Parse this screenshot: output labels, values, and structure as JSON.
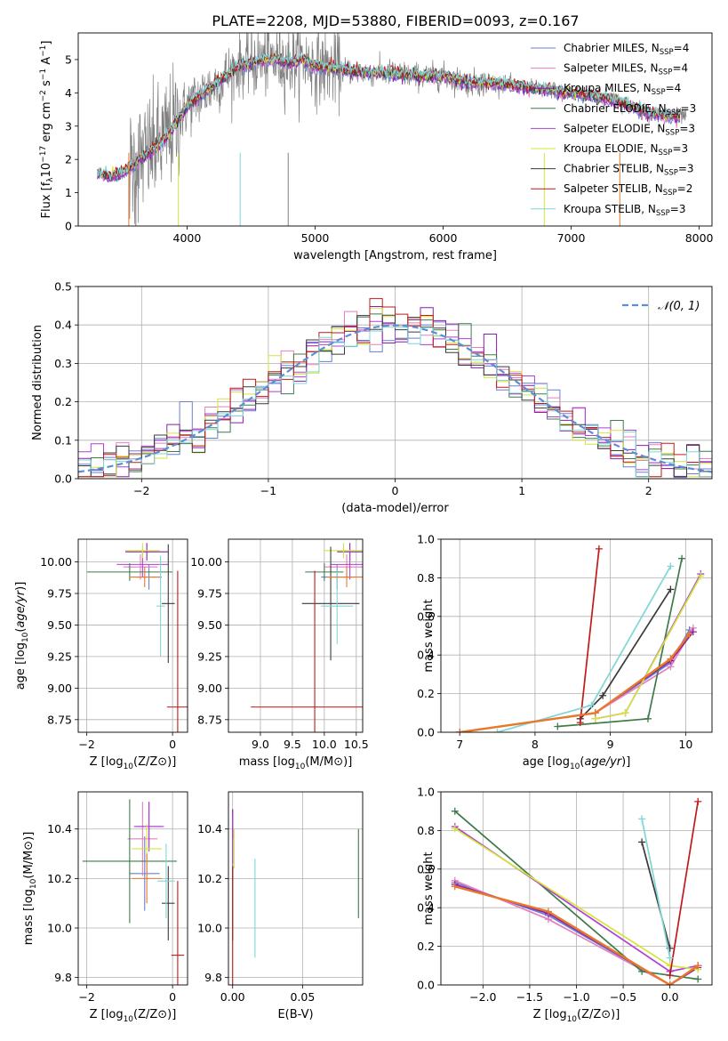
{
  "title": "PLATE=2208, MJD=53880, FIBERID=0093, z=0.167",
  "colors": {
    "Chabrier MILES": "#6a7fd6",
    "Salpeter MILES": "#e57fbf",
    "Kroupa MILES": "#8b1fa8",
    "Chabrier ELODIE": "#3f7a4a",
    "Salpeter ELODIE": "#b03fd6",
    "Kroupa ELODIE": "#d4e43a",
    "Chabrier STELIB": "#3a3a3a",
    "Salpeter STELIB": "#c01a1a",
    "Kroupa STELIB": "#7fd6d6",
    "data": "#808080",
    "orange": "#e8792a"
  },
  "legend_models": [
    {
      "label": "Chabrier MILES, N",
      "sub": "SSP",
      "n": "=4"
    },
    {
      "label": "Salpeter MILES, N",
      "sub": "SSP",
      "n": "=4"
    },
    {
      "label": "Kroupa MILES, N",
      "sub": "SSP",
      "n": "=4"
    },
    {
      "label": "Chabrier ELODIE, N",
      "sub": "SSP",
      "n": "=3"
    },
    {
      "label": "Salpeter ELODIE, N",
      "sub": "SSP",
      "n": "=3"
    },
    {
      "label": "Kroupa ELODIE, N",
      "sub": "SSP",
      "n": "=3"
    },
    {
      "label": "Chabrier STELIB, N",
      "sub": "SSP",
      "n": "=3"
    },
    {
      "label": "Salpeter STELIB, N",
      "sub": "SSP",
      "n": "=2"
    },
    {
      "label": "Kroupa STELIB, N",
      "sub": "SSP",
      "n": "=3"
    }
  ],
  "chart_data": [
    {
      "id": "spectrum",
      "type": "line",
      "xlabel": "wavelength [Angstrom, rest frame]",
      "ylabel": "Flux [fλ10⁻¹⁷ erg cm⁻² s⁻¹ A⁻¹]",
      "xlim": [
        3150,
        8100
      ],
      "ylim": [
        0,
        5.8
      ],
      "xticks": [
        4000,
        5000,
        6000,
        7000,
        8000
      ],
      "yticks": [
        0,
        1,
        2,
        3,
        4,
        5
      ],
      "model_continuum": {
        "x": [
          3300,
          3400,
          3500,
          3600,
          3700,
          3800,
          3900,
          4000,
          4100,
          4200,
          4300,
          4400,
          4500,
          4600,
          4700,
          4800,
          4900,
          5000,
          5200,
          5400,
          5600,
          5800,
          6000,
          6200,
          6400,
          6600,
          6800,
          7000,
          7200,
          7400,
          7600,
          7800
        ],
        "y": [
          1.6,
          1.5,
          1.6,
          1.9,
          2.2,
          2.5,
          3.0,
          3.6,
          3.9,
          4.2,
          4.5,
          4.8,
          4.9,
          5.0,
          5.0,
          4.9,
          5.0,
          4.8,
          4.7,
          4.6,
          4.6,
          4.5,
          4.5,
          4.3,
          4.3,
          4.2,
          4.1,
          4.0,
          3.9,
          3.7,
          3.4,
          3.3
        ]
      }
    },
    {
      "id": "residuals",
      "type": "histogram",
      "xlabel": "(data-model)/error",
      "ylabel": "Normed distribution",
      "xlim": [
        -2.5,
        2.5
      ],
      "ylim": [
        0,
        0.5
      ],
      "xticks": [
        -2,
        -1,
        0,
        1,
        2
      ],
      "yticks": [
        0.0,
        0.1,
        0.2,
        0.3,
        0.4,
        0.5
      ],
      "legend": "N(0,1)",
      "bin_width": 0.1
    },
    {
      "id": "age_vs_Z",
      "type": "scatter",
      "xlabel": "Z [log10(Z/Z⊙)]",
      "ylabel": "age  [log10(age/yr)]",
      "xlim": [
        -2.2,
        0.35
      ],
      "ylim": [
        8.65,
        10.18
      ],
      "xticks": [
        -2,
        0
      ],
      "yticks": [
        8.75,
        9.0,
        9.25,
        9.5,
        9.75,
        10.0
      ],
      "points": [
        {
          "m": "Chabrier MILES",
          "x": -0.55,
          "xe": 0.3,
          "y": 9.88,
          "ye": 0.1
        },
        {
          "m": "Salpeter MILES",
          "x": -0.75,
          "xe": 0.4,
          "y": 9.96,
          "ye": 0.1
        },
        {
          "m": "Kroupa MILES",
          "x": -0.6,
          "xe": 0.5,
          "y": 10.08,
          "ye": 0.07
        },
        {
          "m": "Chabrier ELODIE",
          "x": -1.0,
          "xe": 1.0,
          "y": 9.92,
          "ye": 0.07
        },
        {
          "m": "Salpeter ELODIE",
          "x": -0.7,
          "xe": 0.6,
          "y": 9.98,
          "ye": 0.1
        },
        {
          "m": "Kroupa ELODIE",
          "x": -0.7,
          "xe": 0.4,
          "y": 10.09,
          "ye": 0.06
        },
        {
          "m": "Chabrier STELIB",
          "x": -0.1,
          "xe": 0.15,
          "y": 9.67,
          "ye": 0.47
        },
        {
          "m": "Salpeter STELIB",
          "x": 0.12,
          "xe": 0.25,
          "y": 8.85,
          "ye": 1.08
        },
        {
          "m": "Kroupa STELIB",
          "x": -0.28,
          "xe": 0.1,
          "y": 9.65,
          "ye": 0.4
        },
        {
          "m": "orange",
          "x": -0.65,
          "xe": 0.35,
          "y": 9.88,
          "ye": 0.08
        }
      ]
    },
    {
      "id": "age_vs_mass",
      "type": "scatter",
      "xlabel": "mass [log10(M/M⊙)]",
      "xlim": [
        8.5,
        10.6
      ],
      "ylim": [
        8.65,
        10.18
      ],
      "xticks": [
        9.0,
        9.5,
        10.0,
        10.5
      ],
      "yticks": [
        8.75,
        9.0,
        9.25,
        9.5,
        9.75,
        10.0
      ],
      "points": [
        {
          "m": "Chabrier MILES",
          "x": 10.2,
          "xe": 0.25,
          "y": 9.88,
          "ye": 0.1
        },
        {
          "m": "Salpeter MILES",
          "x": 10.35,
          "xe": 0.35,
          "y": 9.96,
          "ye": 0.1
        },
        {
          "m": "Kroupa MILES",
          "x": 10.4,
          "xe": 0.2,
          "y": 10.08,
          "ye": 0.07
        },
        {
          "m": "Chabrier ELODIE",
          "x": 10.0,
          "xe": 0.3,
          "y": 9.92,
          "ye": 0.07
        },
        {
          "m": "Salpeter ELODIE",
          "x": 10.4,
          "xe": 0.3,
          "y": 9.98,
          "ye": 0.12
        },
        {
          "m": "Kroupa ELODIE",
          "x": 10.3,
          "xe": 0.3,
          "y": 10.09,
          "ye": 0.06
        },
        {
          "m": "Chabrier STELIB",
          "x": 10.1,
          "xe": 0.45,
          "y": 9.67,
          "ye": 0.45
        },
        {
          "m": "Salpeter STELIB",
          "x": 9.85,
          "xe": 1.0,
          "y": 8.85,
          "ye": 1.08
        },
        {
          "m": "Kroupa STELIB",
          "x": 10.2,
          "xe": 0.25,
          "y": 9.65,
          "ye": 0.3
        },
        {
          "m": "orange",
          "x": 10.35,
          "xe": 0.3,
          "y": 9.88,
          "ye": 0.08
        }
      ]
    },
    {
      "id": "mass_weight_vs_age",
      "type": "line",
      "xlabel": "age  [log10(age/yr)]",
      "ylabel": "mass weight",
      "xlim": [
        6.75,
        10.35
      ],
      "ylim": [
        0,
        1.0
      ],
      "xticks": [
        7,
        8,
        9,
        10
      ],
      "yticks": [
        0.0,
        0.2,
        0.4,
        0.6,
        0.8,
        1.0
      ],
      "series": [
        {
          "m": "Chabrier MILES",
          "x": [
            7.0,
            8.8,
            9.8,
            10.05
          ],
          "y": [
            0.0,
            0.1,
            0.36,
            0.53
          ]
        },
        {
          "m": "Salpeter MILES",
          "x": [
            7.0,
            8.8,
            9.8,
            10.1
          ],
          "y": [
            0.0,
            0.1,
            0.34,
            0.54
          ]
        },
        {
          "m": "Kroupa MILES",
          "x": [
            7.0,
            8.8,
            9.8,
            10.1
          ],
          "y": [
            0.0,
            0.1,
            0.37,
            0.52
          ]
        },
        {
          "m": "Chabrier ELODIE",
          "x": [
            8.3,
            9.5,
            9.95
          ],
          "y": [
            0.03,
            0.07,
            0.9
          ]
        },
        {
          "m": "Salpeter ELODIE",
          "x": [
            8.8,
            9.2,
            10.2
          ],
          "y": [
            0.07,
            0.1,
            0.82
          ]
        },
        {
          "m": "Kroupa ELODIE",
          "x": [
            8.8,
            9.2,
            10.2
          ],
          "y": [
            0.07,
            0.1,
            0.81
          ]
        },
        {
          "m": "Chabrier STELIB",
          "x": [
            8.6,
            8.9,
            9.8
          ],
          "y": [
            0.07,
            0.19,
            0.74
          ]
        },
        {
          "m": "Salpeter STELIB",
          "x": [
            8.6,
            8.85
          ],
          "y": [
            0.05,
            0.95
          ]
        },
        {
          "m": "Kroupa STELIB",
          "x": [
            7.5,
            8.75,
            9.8
          ],
          "y": [
            0.0,
            0.14,
            0.86
          ]
        },
        {
          "m": "orange",
          "x": [
            7.0,
            8.8,
            9.8,
            10.05
          ],
          "y": [
            0.0,
            0.1,
            0.38,
            0.51
          ]
        }
      ]
    },
    {
      "id": "mass_vs_Z",
      "type": "scatter",
      "xlabel": "Z [log10(Z/Z⊙)]",
      "ylabel": "mass [log10(M/M⊙)]",
      "xlim": [
        -2.2,
        0.35
      ],
      "ylim": [
        9.77,
        10.55
      ],
      "xticks": [
        -2,
        0
      ],
      "yticks": [
        9.8,
        10.0,
        10.2,
        10.4
      ],
      "points": [
        {
          "m": "Chabrier MILES",
          "x": -0.65,
          "xe": 0.35,
          "y": 10.22,
          "ye": 0.15
        },
        {
          "m": "Salpeter MILES",
          "x": -0.7,
          "xe": 0.35,
          "y": 10.36,
          "ye": 0.15
        },
        {
          "m": "Kroupa MILES",
          "x": -0.55,
          "xe": 0.3,
          "y": 10.41,
          "ye": 0.1
        },
        {
          "m": "Chabrier ELODIE",
          "x": -1.0,
          "xe": 1.1,
          "y": 10.27,
          "ye": 0.25
        },
        {
          "m": "Salpeter ELODIE",
          "x": -0.55,
          "xe": 0.35,
          "y": 10.41,
          "ye": 0.1
        },
        {
          "m": "Kroupa ELODIE",
          "x": -0.6,
          "xe": 0.35,
          "y": 10.32,
          "ye": 0.1
        },
        {
          "m": "Chabrier STELIB",
          "x": -0.1,
          "xe": 0.15,
          "y": 10.1,
          "ye": 0.15
        },
        {
          "m": "Salpeter STELIB",
          "x": 0.12,
          "xe": 0.15,
          "y": 9.89,
          "ye": 0.3
        },
        {
          "m": "Kroupa STELIB",
          "x": -0.15,
          "xe": 0.2,
          "y": 10.19,
          "ye": 0.15
        },
        {
          "m": "orange",
          "x": -0.6,
          "xe": 0.35,
          "y": 10.2,
          "ye": 0.1
        }
      ]
    },
    {
      "id": "mass_vs_ebv",
      "type": "scatter",
      "xlabel": "E(B-V)",
      "xlim": [
        -0.003,
        0.093
      ],
      "ylim": [
        9.77,
        10.55
      ],
      "xticks": [
        0.0,
        0.05
      ],
      "yticks": [
        9.8,
        10.0,
        10.2,
        10.4
      ],
      "points": [
        {
          "m": "Chabrier MILES",
          "x": 0.0,
          "y": 10.3,
          "ye": 0.1
        },
        {
          "m": "Salpeter MILES",
          "x": 0.0,
          "y": 10.4,
          "ye": 0.08
        },
        {
          "m": "Kroupa MILES",
          "x": 0.0,
          "y": 10.42,
          "ye": 0.06
        },
        {
          "m": "Chabrier ELODIE",
          "x": 0.09,
          "y": 10.22,
          "ye": 0.18
        },
        {
          "m": "Salpeter ELODIE",
          "x": 0.0,
          "y": 10.36,
          "ye": 0.1
        },
        {
          "m": "Kroupa ELODIE",
          "x": 0.001,
          "y": 10.32,
          "ye": 0.08
        },
        {
          "m": "Chabrier STELIB",
          "x": 0.0,
          "y": 10.1,
          "ye": 0.15
        },
        {
          "m": "Salpeter STELIB",
          "x": 0.0,
          "y": 10.0,
          "ye": 0.25
        },
        {
          "m": "Kroupa STELIB",
          "x": 0.016,
          "y": 10.08,
          "ye": 0.2
        }
      ]
    },
    {
      "id": "mass_weight_vs_Z",
      "type": "line",
      "xlabel": "Z [log10(Z/Z⊙)]",
      "ylabel": "mass weight",
      "xlim": [
        -2.45,
        0.45
      ],
      "ylim": [
        0,
        1.0
      ],
      "xticks": [
        -2.0,
        -1.5,
        -1.0,
        -0.5,
        0.0
      ],
      "yticks": [
        0.0,
        0.2,
        0.4,
        0.6,
        0.8,
        1.0
      ],
      "series": [
        {
          "m": "Chabrier MILES",
          "x": [
            -2.3,
            -1.3,
            0.0,
            0.3
          ],
          "y": [
            0.53,
            0.36,
            0.0,
            0.1
          ]
        },
        {
          "m": "Salpeter MILES",
          "x": [
            -2.3,
            -1.3,
            0.0,
            0.3
          ],
          "y": [
            0.54,
            0.34,
            0.0,
            0.1
          ]
        },
        {
          "m": "Kroupa MILES",
          "x": [
            -2.3,
            -1.3,
            0.0,
            0.3
          ],
          "y": [
            0.52,
            0.37,
            0.0,
            0.09
          ]
        },
        {
          "m": "Chabrier ELODIE",
          "x": [
            -2.3,
            -0.3,
            0.3
          ],
          "y": [
            0.9,
            0.07,
            0.03
          ]
        },
        {
          "m": "Salpeter ELODIE",
          "x": [
            -2.3,
            0.0,
            0.3
          ],
          "y": [
            0.82,
            0.07,
            0.1
          ]
        },
        {
          "m": "Kroupa ELODIE",
          "x": [
            -2.3,
            0.0,
            0.3
          ],
          "y": [
            0.81,
            0.1,
            0.08
          ]
        },
        {
          "m": "Chabrier STELIB",
          "x": [
            -0.3,
            0.0
          ],
          "y": [
            0.74,
            0.19
          ]
        },
        {
          "m": "Salpeter STELIB",
          "x": [
            0.0,
            0.3
          ],
          "y": [
            0.05,
            0.95
          ]
        },
        {
          "m": "Kroupa STELIB",
          "x": [
            -0.3,
            0.0
          ],
          "y": [
            0.86,
            0.14
          ]
        },
        {
          "m": "orange",
          "x": [
            -2.3,
            -1.3,
            0.0,
            0.3
          ],
          "y": [
            0.51,
            0.38,
            0.0,
            0.1
          ]
        }
      ]
    }
  ]
}
